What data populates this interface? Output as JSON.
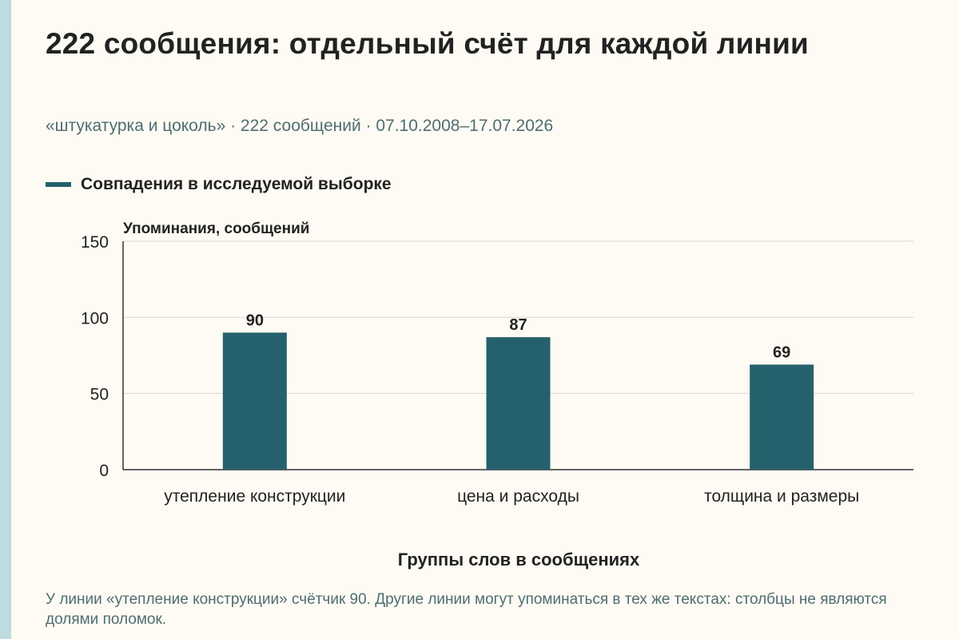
{
  "title": "222 сообщения: отдельный счёт для каждой линии",
  "subtitle": "«штукатурка и цоколь» · 222 сообщений · 07.10.2008–17.07.2026",
  "legend": {
    "label": "Совпадения в исследуемой выборке",
    "color": "#25616c"
  },
  "footnote": "У линии «утепление конструкции» счётчик 90. Другие линии могут упоминаться в тех же текстах: столбцы не являются долями поломок.",
  "chart_data": {
    "type": "bar",
    "categories": [
      "утепление конструкции",
      "цена и расходы",
      "толщина и размеры"
    ],
    "series": [
      {
        "name": "Совпадения в исследуемой выборке",
        "values": [
          90,
          87,
          69
        ]
      }
    ],
    "ylabel": "Упоминания, сообщений",
    "xlabel": "Группы слов в сообщениях",
    "ylim": [
      0,
      150
    ],
    "yticks": [
      0,
      50,
      100,
      150
    ],
    "grid": true,
    "legend_position": "top-left",
    "bar_color": "#25616c"
  }
}
